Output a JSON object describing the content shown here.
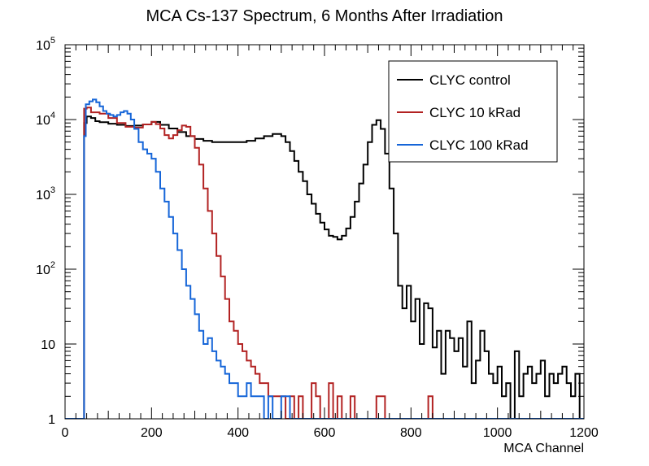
{
  "chart_data": {
    "type": "step-histogram",
    "title": "MCA Cs-137 Spectrum, 6 Months After Irradiation",
    "xlabel": "MCA Channel",
    "ylabel": "",
    "xlim": [
      0,
      1200
    ],
    "ylim": [
      1,
      100000
    ],
    "yscale": "log",
    "x_ticks": [
      {
        "value": 0,
        "label": "0"
      },
      {
        "value": 200,
        "label": "200"
      },
      {
        "value": 400,
        "label": "400"
      },
      {
        "value": 600,
        "label": "600"
      },
      {
        "value": 800,
        "label": "800"
      },
      {
        "value": 1000,
        "label": "1000"
      },
      {
        "value": 1200,
        "label": "1200"
      }
    ],
    "y_ticks": [
      {
        "value": 1,
        "base": "1",
        "exp": ""
      },
      {
        "value": 10,
        "base": "10",
        "exp": ""
      },
      {
        "value": 100,
        "base": "10",
        "exp": "2"
      },
      {
        "value": 1000,
        "base": "10",
        "exp": "3"
      },
      {
        "value": 10000,
        "base": "10",
        "exp": "4"
      },
      {
        "value": 100000,
        "base": "10",
        "exp": "5"
      }
    ],
    "legend_position": "top-right",
    "series": [
      {
        "name": "CLYC control",
        "color": "#000000",
        "points": [
          [
            0,
            1
          ],
          [
            40,
            1
          ],
          [
            44,
            9000
          ],
          [
            50,
            11000
          ],
          [
            60,
            10500
          ],
          [
            70,
            9500
          ],
          [
            80,
            9200
          ],
          [
            100,
            8800
          ],
          [
            120,
            8500
          ],
          [
            140,
            8200
          ],
          [
            160,
            8300
          ],
          [
            180,
            8600
          ],
          [
            200,
            9300
          ],
          [
            220,
            8500
          ],
          [
            240,
            7600
          ],
          [
            260,
            6800
          ],
          [
            280,
            6000
          ],
          [
            300,
            5500
          ],
          [
            320,
            5200
          ],
          [
            340,
            5000
          ],
          [
            360,
            5000
          ],
          [
            400,
            5000
          ],
          [
            420,
            5200
          ],
          [
            440,
            5600
          ],
          [
            460,
            6000
          ],
          [
            480,
            6400
          ],
          [
            500,
            6000
          ],
          [
            510,
            5000
          ],
          [
            520,
            3800
          ],
          [
            530,
            2800
          ],
          [
            540,
            2000
          ],
          [
            550,
            1500
          ],
          [
            560,
            1000
          ],
          [
            570,
            750
          ],
          [
            580,
            550
          ],
          [
            590,
            420
          ],
          [
            600,
            340
          ],
          [
            610,
            280
          ],
          [
            620,
            270
          ],
          [
            630,
            250
          ],
          [
            640,
            280
          ],
          [
            650,
            350
          ],
          [
            660,
            500
          ],
          [
            670,
            800
          ],
          [
            680,
            1400
          ],
          [
            690,
            2500
          ],
          [
            700,
            5000
          ],
          [
            710,
            8500
          ],
          [
            720,
            9800
          ],
          [
            730,
            7500
          ],
          [
            740,
            3500
          ],
          [
            750,
            1200
          ],
          [
            760,
            300
          ],
          [
            770,
            60
          ],
          [
            780,
            30
          ],
          [
            790,
            60
          ],
          [
            800,
            20
          ],
          [
            810,
            40
          ],
          [
            820,
            10
          ],
          [
            830,
            35
          ],
          [
            840,
            30
          ],
          [
            850,
            9
          ],
          [
            860,
            15
          ],
          [
            870,
            4
          ],
          [
            880,
            15
          ],
          [
            890,
            12
          ],
          [
            900,
            8
          ],
          [
            910,
            12
          ],
          [
            920,
            5
          ],
          [
            930,
            20
          ],
          [
            940,
            3
          ],
          [
            950,
            6
          ],
          [
            960,
            15
          ],
          [
            970,
            8
          ],
          [
            980,
            4
          ],
          [
            990,
            3
          ],
          [
            1000,
            5
          ],
          [
            1010,
            2
          ],
          [
            1020,
            3
          ],
          [
            1030,
            1
          ],
          [
            1040,
            8
          ],
          [
            1050,
            2
          ],
          [
            1060,
            4
          ],
          [
            1070,
            5
          ],
          [
            1080,
            3
          ],
          [
            1090,
            4
          ],
          [
            1100,
            6
          ],
          [
            1110,
            2
          ],
          [
            1120,
            4
          ],
          [
            1130,
            3
          ],
          [
            1140,
            4
          ],
          [
            1150,
            5
          ],
          [
            1160,
            3
          ],
          [
            1170,
            2
          ],
          [
            1180,
            4
          ],
          [
            1190,
            1
          ]
        ]
      },
      {
        "name": "CLYC 10 kRad",
        "color": "#b22222",
        "points": [
          [
            0,
            1
          ],
          [
            40,
            1
          ],
          [
            44,
            14000
          ],
          [
            50,
            14500
          ],
          [
            60,
            12500
          ],
          [
            80,
            12000
          ],
          [
            100,
            10500
          ],
          [
            120,
            9000
          ],
          [
            140,
            8000
          ],
          [
            160,
            7800
          ],
          [
            180,
            8600
          ],
          [
            200,
            9300
          ],
          [
            210,
            8700
          ],
          [
            220,
            7600
          ],
          [
            230,
            6200
          ],
          [
            240,
            5600
          ],
          [
            250,
            6200
          ],
          [
            260,
            7200
          ],
          [
            270,
            8300
          ],
          [
            280,
            8000
          ],
          [
            290,
            6000
          ],
          [
            300,
            4200
          ],
          [
            310,
            2500
          ],
          [
            320,
            1200
          ],
          [
            330,
            600
          ],
          [
            340,
            300
          ],
          [
            350,
            150
          ],
          [
            360,
            80
          ],
          [
            370,
            40
          ],
          [
            380,
            20
          ],
          [
            390,
            15
          ],
          [
            400,
            10
          ],
          [
            410,
            8
          ],
          [
            420,
            6
          ],
          [
            430,
            5
          ],
          [
            440,
            4
          ],
          [
            450,
            3
          ],
          [
            460,
            3
          ],
          [
            470,
            2
          ],
          [
            480,
            2
          ],
          [
            490,
            2
          ],
          [
            500,
            2
          ],
          [
            510,
            1
          ],
          [
            520,
            2
          ],
          [
            530,
            1
          ],
          [
            540,
            2
          ],
          [
            550,
            1
          ],
          [
            560,
            1
          ],
          [
            570,
            3
          ],
          [
            580,
            2
          ],
          [
            590,
            1
          ],
          [
            600,
            1
          ],
          [
            610,
            3
          ],
          [
            620,
            1
          ],
          [
            630,
            2
          ],
          [
            640,
            1
          ],
          [
            650,
            1
          ],
          [
            660,
            2
          ],
          [
            670,
            1
          ],
          [
            680,
            1
          ],
          [
            690,
            1
          ],
          [
            700,
            1
          ],
          [
            720,
            2
          ],
          [
            740,
            1
          ],
          [
            760,
            1
          ],
          [
            800,
            1
          ],
          [
            820,
            1
          ],
          [
            840,
            2
          ],
          [
            850,
            1
          ],
          [
            860,
            1
          ],
          [
            1200,
            1
          ]
        ]
      },
      {
        "name": "CLYC 100 kRad",
        "color": "#1565d8",
        "points": [
          [
            0,
            1
          ],
          [
            40,
            1
          ],
          [
            44,
            6000
          ],
          [
            48,
            16000
          ],
          [
            56,
            17500
          ],
          [
            64,
            18500
          ],
          [
            72,
            17000
          ],
          [
            80,
            15000
          ],
          [
            88,
            13000
          ],
          [
            96,
            12000
          ],
          [
            104,
            11500
          ],
          [
            112,
            11000
          ],
          [
            120,
            11500
          ],
          [
            128,
            12500
          ],
          [
            136,
            13000
          ],
          [
            144,
            12000
          ],
          [
            152,
            10000
          ],
          [
            160,
            7500
          ],
          [
            170,
            5000
          ],
          [
            180,
            4000
          ],
          [
            190,
            3500
          ],
          [
            200,
            3000
          ],
          [
            210,
            2000
          ],
          [
            220,
            1200
          ],
          [
            230,
            800
          ],
          [
            240,
            500
          ],
          [
            250,
            300
          ],
          [
            260,
            180
          ],
          [
            270,
            100
          ],
          [
            280,
            60
          ],
          [
            290,
            40
          ],
          [
            300,
            25
          ],
          [
            310,
            15
          ],
          [
            320,
            10
          ],
          [
            330,
            12
          ],
          [
            340,
            8
          ],
          [
            350,
            6
          ],
          [
            360,
            5
          ],
          [
            370,
            4
          ],
          [
            380,
            3
          ],
          [
            390,
            3
          ],
          [
            400,
            2
          ],
          [
            410,
            2
          ],
          [
            420,
            3
          ],
          [
            430,
            2
          ],
          [
            440,
            2
          ],
          [
            450,
            2
          ],
          [
            460,
            1
          ],
          [
            470,
            2
          ],
          [
            480,
            1
          ],
          [
            490,
            1
          ],
          [
            500,
            2
          ],
          [
            520,
            1
          ],
          [
            540,
            1
          ],
          [
            560,
            1
          ],
          [
            580,
            1
          ],
          [
            600,
            1
          ],
          [
            620,
            1
          ],
          [
            640,
            1
          ],
          [
            660,
            1
          ],
          [
            680,
            1
          ],
          [
            700,
            1
          ],
          [
            720,
            1
          ],
          [
            740,
            1
          ],
          [
            760,
            1
          ],
          [
            780,
            1
          ],
          [
            800,
            1
          ],
          [
            840,
            1
          ],
          [
            880,
            1
          ],
          [
            920,
            1
          ],
          [
            960,
            1
          ],
          [
            1000,
            1
          ],
          [
            1040,
            1
          ],
          [
            1060,
            1
          ],
          [
            1080,
            1
          ],
          [
            1100,
            1
          ],
          [
            1200,
            1
          ]
        ]
      }
    ]
  }
}
